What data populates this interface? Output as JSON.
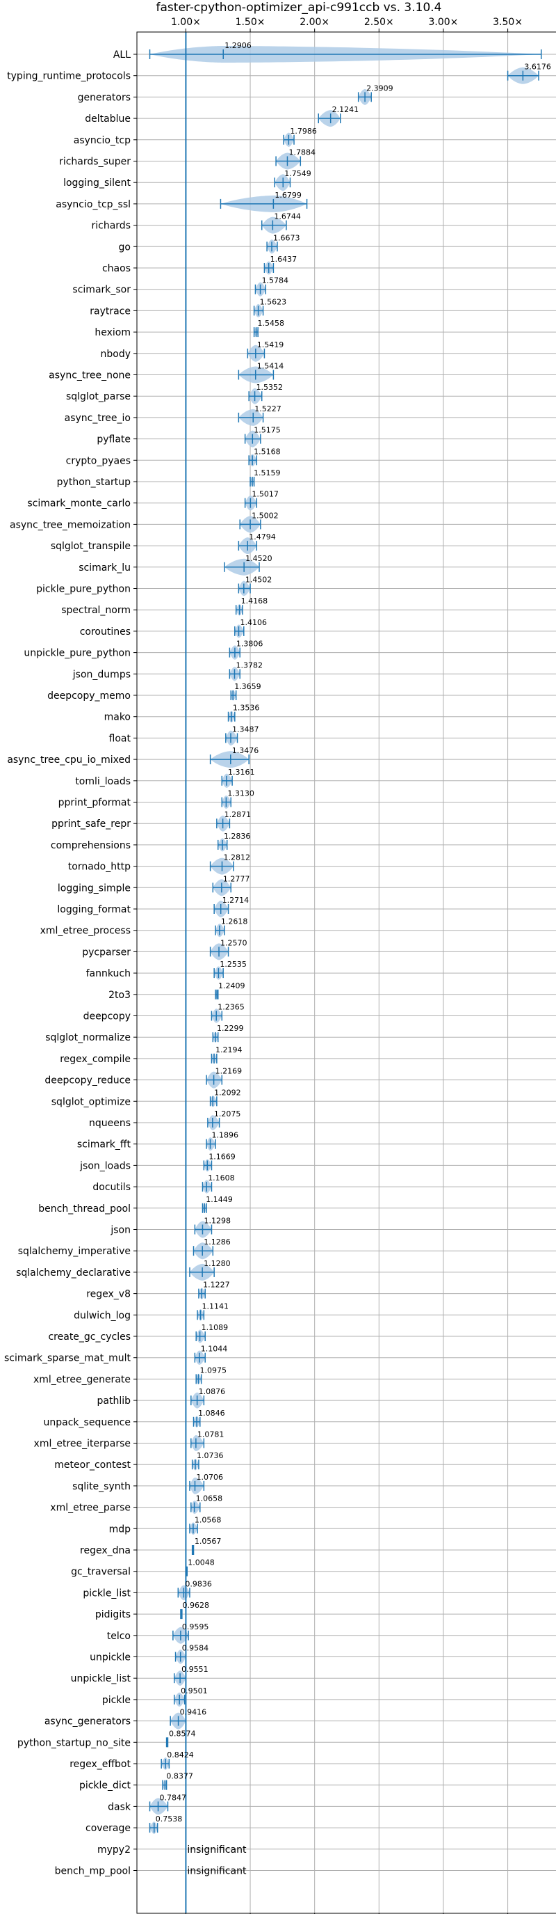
{
  "chart_data": {
    "type": "violin",
    "title": "faster-cpython-optimizer_api-c991ccb vs. 3.10.4",
    "x_ticks": [
      1.0,
      1.5,
      2.0,
      2.5,
      3.0,
      3.5
    ],
    "x_tick_labels": [
      "1.00×",
      "1.50×",
      "2.00×",
      "2.50×",
      "3.00×",
      "3.50×"
    ],
    "xlim": [
      0.62,
      3.88
    ],
    "reference_line": 1.0,
    "grid": true,
    "colors": {
      "accent": "#1f77b4",
      "violin": "#aecbe6",
      "grid": "#b0b0b0"
    },
    "categories": [
      "ALL",
      "typing_runtime_protocols",
      "generators",
      "deltablue",
      "asyncio_tcp",
      "richards_super",
      "logging_silent",
      "asyncio_tcp_ssl",
      "richards",
      "go",
      "chaos",
      "scimark_sor",
      "raytrace",
      "hexiom",
      "nbody",
      "async_tree_none",
      "sqlglot_parse",
      "async_tree_io",
      "pyflate",
      "crypto_pyaes",
      "python_startup",
      "scimark_monte_carlo",
      "async_tree_memoization",
      "sqlglot_transpile",
      "scimark_lu",
      "pickle_pure_python",
      "spectral_norm",
      "coroutines",
      "unpickle_pure_python",
      "json_dumps",
      "deepcopy_memo",
      "mako",
      "float",
      "async_tree_cpu_io_mixed",
      "tomli_loads",
      "pprint_pformat",
      "pprint_safe_repr",
      "comprehensions",
      "tornado_http",
      "logging_simple",
      "logging_format",
      "xml_etree_process",
      "pycparser",
      "fannkuch",
      "2to3",
      "deepcopy",
      "sqlglot_normalize",
      "regex_compile",
      "deepcopy_reduce",
      "sqlglot_optimize",
      "nqueens",
      "scimark_fft",
      "json_loads",
      "docutils",
      "bench_thread_pool",
      "json",
      "sqlalchemy_imperative",
      "sqlalchemy_declarative",
      "regex_v8",
      "dulwich_log",
      "create_gc_cycles",
      "scimark_sparse_mat_mult",
      "xml_etree_generate",
      "pathlib",
      "unpack_sequence",
      "xml_etree_iterparse",
      "meteor_contest",
      "sqlite_synth",
      "xml_etree_parse",
      "mdp",
      "regex_dna",
      "gc_traversal",
      "pickle_list",
      "pidigits",
      "telco",
      "unpickle",
      "unpickle_list",
      "pickle",
      "async_generators",
      "python_startup_no_site",
      "regex_effbot",
      "pickle_dict",
      "dask",
      "coverage",
      "mypy2",
      "bench_mp_pool"
    ],
    "values": [
      1.2906,
      3.6176,
      2.3909,
      2.1241,
      1.7986,
      1.7884,
      1.7549,
      1.6799,
      1.6744,
      1.6673,
      1.6437,
      1.5784,
      1.5623,
      1.5458,
      1.5419,
      1.5414,
      1.5352,
      1.5227,
      1.5175,
      1.5168,
      1.5159,
      1.5017,
      1.5002,
      1.4794,
      1.452,
      1.4502,
      1.4168,
      1.4106,
      1.3806,
      1.3782,
      1.3659,
      1.3536,
      1.3487,
      1.3476,
      1.3161,
      1.313,
      1.2871,
      1.2836,
      1.2812,
      1.2777,
      1.2714,
      1.2618,
      1.257,
      1.2535,
      1.2409,
      1.2365,
      1.2299,
      1.2194,
      1.2169,
      1.2092,
      1.2075,
      1.1896,
      1.1669,
      1.1608,
      1.1449,
      1.1298,
      1.1286,
      1.128,
      1.1227,
      1.1141,
      1.1089,
      1.1044,
      1.0975,
      1.0876,
      1.0846,
      1.0781,
      1.0736,
      1.0706,
      1.0658,
      1.0568,
      1.0567,
      1.0048,
      0.9836,
      0.9628,
      0.9595,
      0.9584,
      0.9551,
      0.9501,
      0.9416,
      0.8574,
      0.8424,
      0.8377,
      0.7847,
      0.7538,
      null,
      null
    ],
    "value_labels": [
      "1.2906",
      "3.6176",
      "2.3909",
      "2.1241",
      "1.7986",
      "1.7884",
      "1.7549",
      "1.6799",
      "1.6744",
      "1.6673",
      "1.6437",
      "1.5784",
      "1.5623",
      "1.5458",
      "1.5419",
      "1.5414",
      "1.5352",
      "1.5227",
      "1.5175",
      "1.5168",
      "1.5159",
      "1.5017",
      "1.5002",
      "1.4794",
      "1.4520",
      "1.4502",
      "1.4168",
      "1.4106",
      "1.3806",
      "1.3782",
      "1.3659",
      "1.3536",
      "1.3487",
      "1.3476",
      "1.3161",
      "1.3130",
      "1.2871",
      "1.2836",
      "1.2812",
      "1.2777",
      "1.2714",
      "1.2618",
      "1.2570",
      "1.2535",
      "1.2409",
      "1.2365",
      "1.2299",
      "1.2194",
      "1.2169",
      "1.2092",
      "1.2075",
      "1.1896",
      "1.1669",
      "1.1608",
      "1.1449",
      "1.1298",
      "1.1286",
      "1.1280",
      "1.1227",
      "1.1141",
      "1.1089",
      "1.1044",
      "1.0975",
      "1.0876",
      "1.0846",
      "1.0781",
      "1.0736",
      "1.0706",
      "1.0658",
      "1.0568",
      "1.0567",
      "1.0048",
      "0.9836",
      "0.9628",
      "0.9595",
      "0.9584",
      "0.9551",
      "0.9501",
      "0.9416",
      "0.8574",
      "0.8424",
      "0.8377",
      "0.7847",
      "0.7538",
      "insignificant",
      "insignificant"
    ],
    "ranges": [
      [
        0.72,
        3.76
      ],
      [
        3.5,
        3.74
      ],
      [
        2.34,
        2.44
      ],
      [
        2.03,
        2.2
      ],
      [
        1.76,
        1.84
      ],
      [
        1.7,
        1.89
      ],
      [
        1.69,
        1.81
      ],
      [
        1.27,
        1.94
      ],
      [
        1.59,
        1.78
      ],
      [
        1.63,
        1.71
      ],
      [
        1.61,
        1.68
      ],
      [
        1.54,
        1.62
      ],
      [
        1.53,
        1.6
      ],
      [
        1.53,
        1.56
      ],
      [
        1.48,
        1.61
      ],
      [
        1.41,
        1.68
      ],
      [
        1.49,
        1.59
      ],
      [
        1.41,
        1.6
      ],
      [
        1.46,
        1.58
      ],
      [
        1.49,
        1.55
      ],
      [
        1.5,
        1.53
      ],
      [
        1.46,
        1.55
      ],
      [
        1.42,
        1.58
      ],
      [
        1.41,
        1.55
      ],
      [
        1.3,
        1.57
      ],
      [
        1.41,
        1.5
      ],
      [
        1.39,
        1.44
      ],
      [
        1.38,
        1.45
      ],
      [
        1.34,
        1.42
      ],
      [
        1.34,
        1.42
      ],
      [
        1.35,
        1.39
      ],
      [
        1.33,
        1.38
      ],
      [
        1.31,
        1.4
      ],
      [
        1.19,
        1.49
      ],
      [
        1.28,
        1.36
      ],
      [
        1.28,
        1.35
      ],
      [
        1.24,
        1.34
      ],
      [
        1.25,
        1.32
      ],
      [
        1.19,
        1.37
      ],
      [
        1.21,
        1.35
      ],
      [
        1.22,
        1.33
      ],
      [
        1.23,
        1.3
      ],
      [
        1.19,
        1.33
      ],
      [
        1.22,
        1.29
      ],
      [
        1.23,
        1.25
      ],
      [
        1.2,
        1.28
      ],
      [
        1.21,
        1.25
      ],
      [
        1.2,
        1.24
      ],
      [
        1.16,
        1.28
      ],
      [
        1.19,
        1.24
      ],
      [
        1.17,
        1.26
      ],
      [
        1.16,
        1.23
      ],
      [
        1.14,
        1.2
      ],
      [
        1.13,
        1.2
      ],
      [
        1.13,
        1.16
      ],
      [
        1.07,
        1.2
      ],
      [
        1.06,
        1.21
      ],
      [
        1.03,
        1.22
      ],
      [
        1.1,
        1.15
      ],
      [
        1.09,
        1.14
      ],
      [
        1.08,
        1.15
      ],
      [
        1.07,
        1.15
      ],
      [
        1.08,
        1.12
      ],
      [
        1.04,
        1.14
      ],
      [
        1.06,
        1.11
      ],
      [
        1.04,
        1.14
      ],
      [
        1.05,
        1.1
      ],
      [
        1.03,
        1.14
      ],
      [
        1.04,
        1.11
      ],
      [
        1.03,
        1.09
      ],
      [
        1.05,
        1.06
      ],
      [
        1.0,
        1.01
      ],
      [
        0.94,
        1.03
      ],
      [
        0.96,
        0.97
      ],
      [
        0.9,
        1.02
      ],
      [
        0.92,
        1.0
      ],
      [
        0.91,
        1.0
      ],
      [
        0.91,
        0.99
      ],
      [
        0.88,
        1.0
      ],
      [
        0.85,
        0.86
      ],
      [
        0.81,
        0.87
      ],
      [
        0.82,
        0.85
      ],
      [
        0.72,
        0.86
      ],
      [
        0.72,
        0.78
      ],
      null,
      null
    ]
  }
}
